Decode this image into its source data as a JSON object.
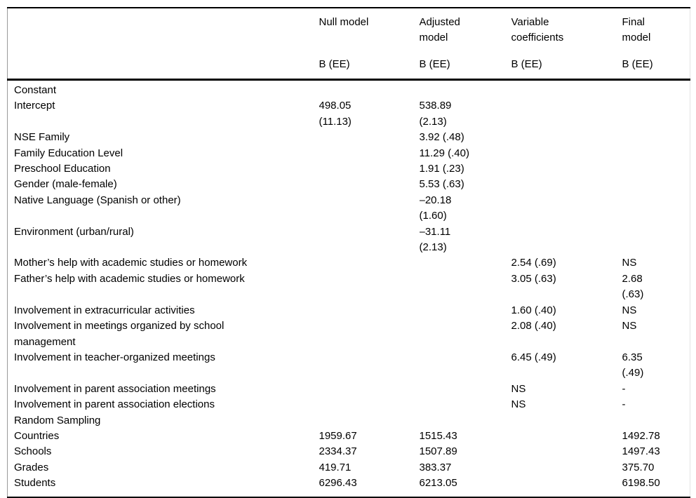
{
  "table": {
    "header": {
      "columns": [
        {
          "label": "Null model",
          "sub": "B (EE)"
        },
        {
          "label": "Adjusted\nmodel",
          "sub": "B (EE)"
        },
        {
          "label": "Variable\ncoefficients",
          "sub": "B (EE)"
        },
        {
          "label": "Final\nmodel",
          "sub": "B (EE)"
        }
      ]
    },
    "rows": [
      {
        "label": "Constant",
        "null_model": "",
        "adjusted_model": "",
        "variable_coefficients": "",
        "final_model": ""
      },
      {
        "label": "Intercept",
        "null_model": "498.05\n(11.13)",
        "adjusted_model": "538.89\n(2.13)",
        "variable_coefficients": "",
        "final_model": ""
      },
      {
        "label": "NSE Family",
        "null_model": "",
        "adjusted_model": "3.92 (.48)",
        "variable_coefficients": "",
        "final_model": ""
      },
      {
        "label": "Family Education Level",
        "null_model": "",
        "adjusted_model": "11.29 (.40)",
        "variable_coefficients": "",
        "final_model": ""
      },
      {
        "label": "Preschool Education",
        "null_model": "",
        "adjusted_model": "1.91 (.23)",
        "variable_coefficients": "",
        "final_model": ""
      },
      {
        "label": "Gender (male-female)",
        "null_model": "",
        "adjusted_model": "5.53 (.63)",
        "variable_coefficients": "",
        "final_model": ""
      },
      {
        "label": "Native Language (Spanish or other)",
        "null_model": "",
        "adjusted_model": "–20.18\n(1.60)",
        "variable_coefficients": "",
        "final_model": ""
      },
      {
        "label": "Environment (urban/rural)",
        "null_model": "",
        "adjusted_model": "–31.11\n(2.13)",
        "variable_coefficients": "",
        "final_model": ""
      },
      {
        "label": "Mother’s help with academic studies or homework",
        "null_model": "",
        "adjusted_model": "",
        "variable_coefficients": "2.54 (.69)",
        "final_model": "NS"
      },
      {
        "label": "Father’s help with academic studies or homework",
        "null_model": "",
        "adjusted_model": "",
        "variable_coefficients": "3.05 (.63)",
        "final_model": "2.68\n(.63)"
      },
      {
        "label": "Involvement in extracurricular activities",
        "null_model": "",
        "adjusted_model": "",
        "variable_coefficients": "1.60 (.40)",
        "final_model": "NS"
      },
      {
        "label": "Involvement in meetings organized by school\nmanagement",
        "null_model": "",
        "adjusted_model": "",
        "variable_coefficients": "2.08 (.40)",
        "final_model": "NS"
      },
      {
        "label": "Involvement in teacher-organized meetings",
        "null_model": "",
        "adjusted_model": "",
        "variable_coefficients": "6.45 (.49)",
        "final_model": "6.35\n(.49)"
      },
      {
        "label": "Involvement in parent association meetings",
        "null_model": "",
        "adjusted_model": "",
        "variable_coefficients": "NS",
        "final_model": "-"
      },
      {
        "label": "Involvement in parent association elections",
        "null_model": "",
        "adjusted_model": "",
        "variable_coefficients": "NS",
        "final_model": "-"
      },
      {
        "label": "Random Sampling",
        "null_model": "",
        "adjusted_model": "",
        "variable_coefficients": "",
        "final_model": ""
      },
      {
        "label": "Countries",
        "null_model": "1959.67",
        "adjusted_model": "1515.43",
        "variable_coefficients": "",
        "final_model": "1492.78"
      },
      {
        "label": "Schools",
        "null_model": "2334.37",
        "adjusted_model": "1507.89",
        "variable_coefficients": "",
        "final_model": "1497.43"
      },
      {
        "label": "Grades",
        "null_model": "419.71",
        "adjusted_model": "383.37",
        "variable_coefficients": "",
        "final_model": "375.70"
      },
      {
        "label": "Students",
        "null_model": "6296.43",
        "adjusted_model": "6213.05",
        "variable_coefficients": "",
        "final_model": "6198.50"
      }
    ]
  }
}
